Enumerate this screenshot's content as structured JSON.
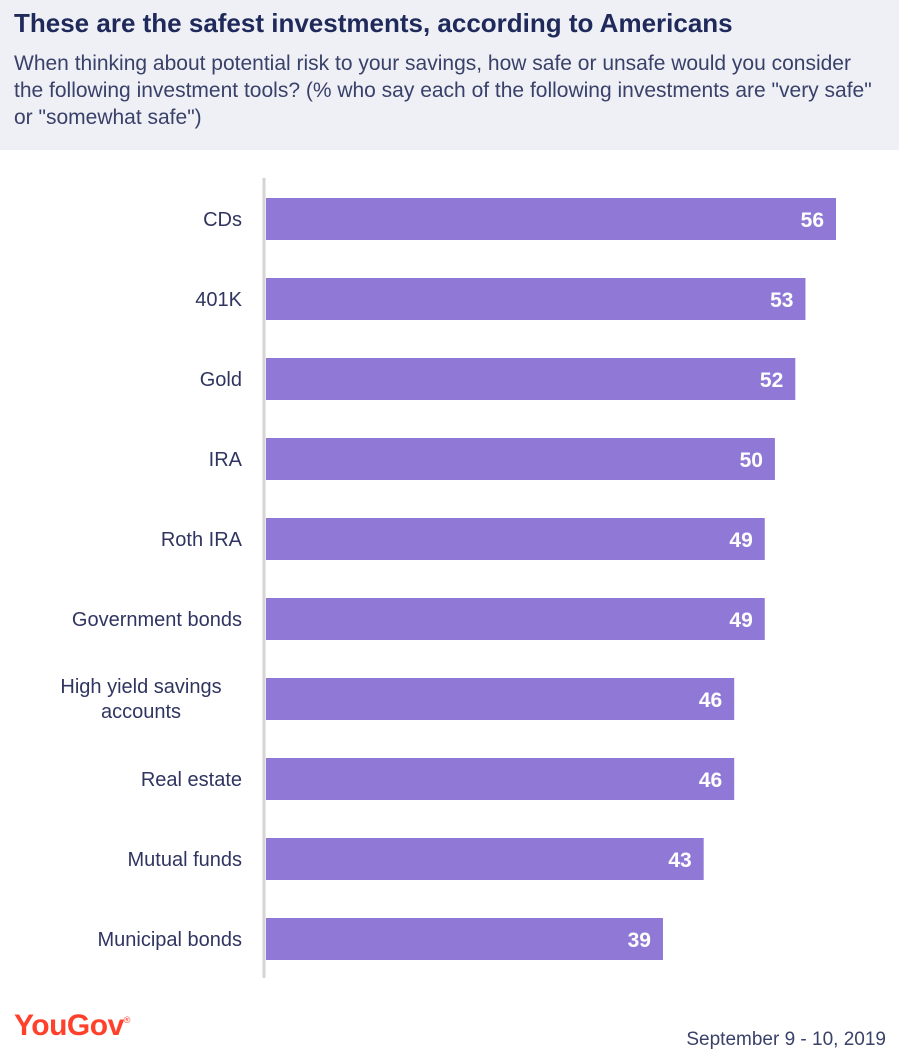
{
  "header": {
    "title": "These are the safest investments, according to Americans",
    "subtitle": "When thinking about potential risk to your savings, how safe or unsafe would you consider the following investment tools? (% who say each of the following investments are \"very safe\" or \"somewhat safe\")"
  },
  "footer": {
    "logo": "YouGov",
    "date": "September 9 - 10, 2019"
  },
  "colors": {
    "bar": "#9079d6",
    "title": "#1f2a5a",
    "header_background": "#eef0f6",
    "logo": "#ff412c"
  },
  "chart_data": {
    "type": "bar",
    "orientation": "horizontal",
    "categories": [
      [
        "CDs"
      ],
      [
        "401K"
      ],
      [
        "Gold"
      ],
      [
        "IRA"
      ],
      [
        "Roth IRA"
      ],
      [
        "Government bonds"
      ],
      [
        "High yield savings",
        "accounts"
      ],
      [
        "Real estate"
      ],
      [
        "Mutual funds"
      ],
      [
        "Municipal bonds"
      ]
    ],
    "values": [
      56,
      53,
      52,
      50,
      49,
      49,
      46,
      46,
      43,
      39
    ],
    "xlim": [
      0,
      56
    ],
    "grid": false,
    "legend": "none",
    "data_labels": "inside-end"
  }
}
